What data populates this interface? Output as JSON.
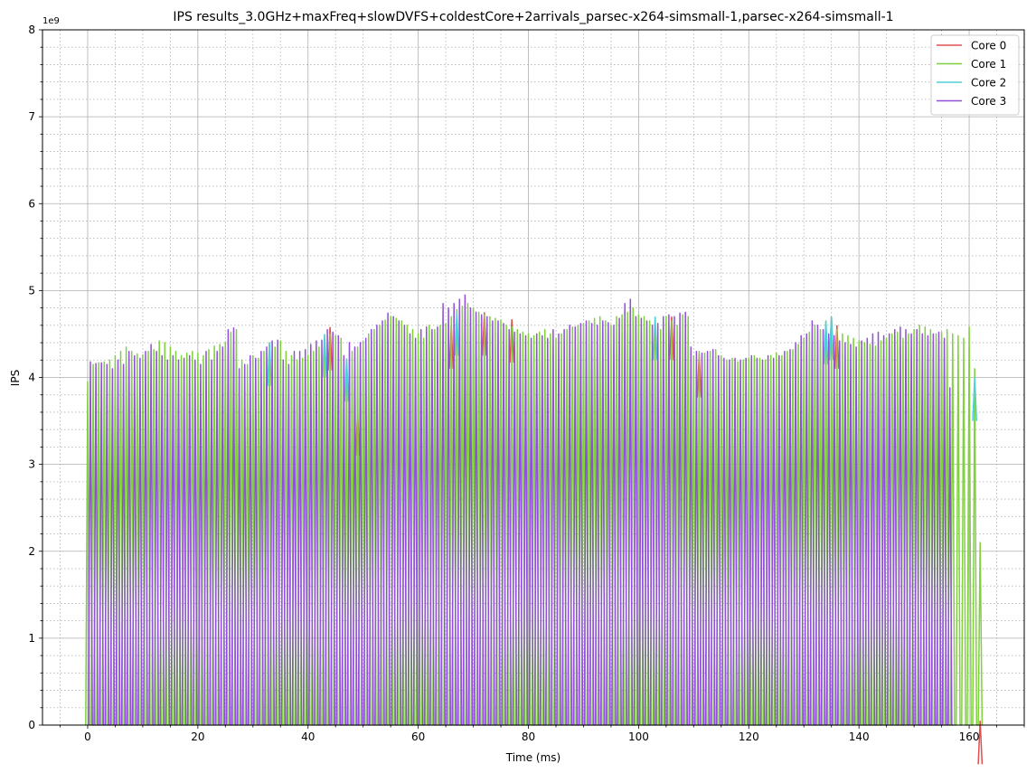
{
  "chart_data": {
    "type": "line",
    "title": "IPS results_3.0GHz+maxFreq+slowDVFS+coldestCore+2arrivals_parsec-x264-simsmall-1,parsec-x264-simsmall-1",
    "xlabel": "Time (ms)",
    "ylabel": "IPS",
    "y_offset_label": "1e9",
    "xlim": [
      -8.2,
      170
    ],
    "ylim": [
      0,
      8
    ],
    "y_scale": 1000000000,
    "x_ticks": [
      0,
      20,
      40,
      60,
      80,
      100,
      120,
      140,
      160
    ],
    "x_tick_labels": [
      "0",
      "20",
      "40",
      "60",
      "80",
      "100",
      "120",
      "140",
      "160"
    ],
    "y_ticks": [
      0,
      1,
      2,
      3,
      4,
      5,
      6,
      7,
      8
    ],
    "y_tick_labels": [
      "0",
      "1",
      "2",
      "3",
      "4",
      "5",
      "6",
      "7",
      "8"
    ],
    "x_minor_step": 5,
    "y_minor_step": 0.2,
    "grid": true,
    "legend_position": "top-right",
    "oscillation_period_ms": 1.0,
    "series": [
      {
        "name": "Core 0",
        "color": "#e05050",
        "peak_times_ms": [
          44,
          49,
          66,
          72,
          77,
          106,
          111,
          135,
          136,
          162
        ],
        "peak_values": [
          4.58,
          3.6,
          4.6,
          4.75,
          4.67,
          4.7,
          4.27,
          4.7,
          4.6,
          0.05
        ]
      },
      {
        "name": "Core 1",
        "color": "#80d040",
        "peak_times_ms": [
          0,
          1,
          2,
          3,
          4,
          5,
          6,
          7,
          8,
          9,
          10,
          11,
          12,
          13,
          14,
          15,
          16,
          17,
          18,
          19,
          20,
          21,
          22,
          23,
          24,
          25,
          26,
          27,
          28,
          29,
          30,
          31,
          32,
          33,
          34,
          35,
          36,
          37,
          38,
          39,
          40,
          41,
          42,
          43,
          44,
          45,
          46,
          47,
          48,
          49,
          50,
          51,
          52,
          53,
          54,
          55,
          56,
          57,
          58,
          59,
          60,
          61,
          62,
          63,
          64,
          65,
          66,
          67,
          68,
          69,
          70,
          71,
          72,
          73,
          74,
          75,
          76,
          77,
          78,
          79,
          80,
          81,
          82,
          83,
          84,
          85,
          86,
          87,
          88,
          89,
          90,
          91,
          92,
          93,
          94,
          95,
          96,
          97,
          98,
          99,
          100,
          101,
          102,
          103,
          104,
          105,
          106,
          107,
          108,
          109,
          110,
          111,
          112,
          113,
          114,
          115,
          116,
          117,
          118,
          119,
          120,
          121,
          122,
          123,
          124,
          125,
          126,
          127,
          128,
          129,
          130,
          131,
          132,
          133,
          134,
          135,
          136,
          137,
          138,
          139,
          140,
          141,
          142,
          143,
          144,
          145,
          146,
          147,
          148,
          149,
          150,
          151,
          152,
          153,
          154,
          155,
          156,
          157,
          158,
          159,
          160,
          161,
          162
        ],
        "peak_values": [
          3.95,
          4.15,
          4.17,
          4.18,
          4.2,
          4.25,
          4.3,
          4.35,
          4.3,
          4.27,
          4.26,
          4.3,
          4.32,
          4.42,
          4.4,
          4.35,
          4.3,
          4.25,
          4.28,
          4.3,
          4.28,
          4.25,
          4.32,
          4.36,
          4.38,
          4.4,
          4.52,
          4.55,
          4.2,
          4.15,
          4.25,
          4.22,
          4.3,
          4.4,
          4.35,
          4.42,
          4.3,
          4.25,
          4.2,
          4.22,
          4.25,
          4.3,
          4.35,
          4.4,
          4.5,
          4.48,
          4.45,
          4.2,
          4.3,
          4.35,
          4.42,
          4.5,
          4.55,
          4.6,
          4.66,
          4.7,
          4.68,
          4.65,
          4.6,
          4.55,
          4.5,
          4.45,
          4.6,
          4.55,
          4.6,
          4.62,
          4.7,
          4.78,
          4.82,
          4.85,
          4.8,
          4.75,
          4.72,
          4.7,
          4.68,
          4.66,
          4.6,
          4.58,
          4.55,
          4.52,
          4.5,
          4.48,
          4.52,
          4.55,
          4.5,
          4.45,
          4.5,
          4.55,
          4.58,
          4.6,
          4.62,
          4.65,
          4.68,
          4.7,
          4.65,
          4.6,
          4.7,
          4.72,
          4.75,
          4.8,
          4.72,
          4.7,
          4.65,
          4.6,
          4.55,
          4.7,
          4.65,
          4.6,
          4.72,
          4.7,
          4.25,
          4.3,
          4.28,
          4.3,
          4.32,
          4.25,
          4.2,
          4.22,
          4.18,
          4.2,
          4.22,
          4.25,
          4.22,
          4.2,
          4.25,
          4.28,
          4.25,
          4.3,
          4.32,
          4.38,
          4.45,
          4.52,
          4.6,
          4.55,
          4.65,
          4.6,
          4.55,
          4.5,
          4.48,
          4.45,
          4.42,
          4.4,
          4.38,
          4.36,
          4.42,
          4.45,
          4.5,
          4.52,
          4.45,
          4.5,
          4.55,
          4.6,
          4.58,
          4.55,
          4.5,
          4.52,
          4.55,
          4.5,
          4.48,
          4.45,
          4.58,
          4.1,
          2.1
        ]
      },
      {
        "name": "Core 2",
        "color": "#50d0d8",
        "peak_times_ms": [
          33,
          43,
          47,
          67,
          103,
          134,
          135,
          161
        ],
        "peak_values": [
          4.4,
          4.5,
          4.22,
          4.75,
          4.7,
          4.65,
          4.7,
          4.0
        ]
      },
      {
        "name": "Core 3",
        "color": "#9050d8",
        "peak_times_ms": [
          0.5,
          1.5,
          2.5,
          3.5,
          4.5,
          5.5,
          6.5,
          7.5,
          8.5,
          9.5,
          10.5,
          11.5,
          12.5,
          13.5,
          14.5,
          15.5,
          16.5,
          17.5,
          18.5,
          19.5,
          20.5,
          21.5,
          22.5,
          23.5,
          24.5,
          25.5,
          26.5,
          27.5,
          28.5,
          29.5,
          30.5,
          31.5,
          32.5,
          33.5,
          34.5,
          35.5,
          36.5,
          37.5,
          38.5,
          39.5,
          40.5,
          41.5,
          42.5,
          43.5,
          44.5,
          45.5,
          46.5,
          47.5,
          48.5,
          49.5,
          50.5,
          51.5,
          52.5,
          53.5,
          54.5,
          55.5,
          56.5,
          57.5,
          58.5,
          59.5,
          60.5,
          61.5,
          62.5,
          63.5,
          64.5,
          65.5,
          66.5,
          67.5,
          68.5,
          69.5,
          70.5,
          71.5,
          72.5,
          73.5,
          74.5,
          75.5,
          76.5,
          77.5,
          78.5,
          79.5,
          80.5,
          81.5,
          82.5,
          83.5,
          84.5,
          85.5,
          86.5,
          87.5,
          88.5,
          89.5,
          90.5,
          91.5,
          92.5,
          93.5,
          94.5,
          95.5,
          96.5,
          97.5,
          98.5,
          99.5,
          100.5,
          101.5,
          102.5,
          103.5,
          104.5,
          105.5,
          106.5,
          107.5,
          108.5,
          109.5,
          110.5,
          111.5,
          112.5,
          113.5,
          114.5,
          115.5,
          116.5,
          117.5,
          118.5,
          119.5,
          120.5,
          121.5,
          122.5,
          123.5,
          124.5,
          125.5,
          126.5,
          127.5,
          128.5,
          129.5,
          130.5,
          131.5,
          132.5,
          133.5,
          134.5,
          135.5,
          136.5,
          137.5,
          138.5,
          139.5,
          140.5,
          141.5,
          142.5,
          143.5,
          144.5,
          145.5,
          146.5,
          147.5,
          148.5,
          149.5,
          150.5,
          151.5,
          152.5,
          153.5,
          154.5,
          155.5,
          156.5,
          157.5,
          158.5,
          159.5,
          160.5,
          161.5
        ],
        "peak_values": [
          4.18,
          4.16,
          4.17,
          4.15,
          4.1,
          4.2,
          4.15,
          4.3,
          4.25,
          4.22,
          4.3,
          4.38,
          4.3,
          4.25,
          4.2,
          4.25,
          4.2,
          4.22,
          4.25,
          4.2,
          4.15,
          4.3,
          4.2,
          4.3,
          4.35,
          4.55,
          4.57,
          4.1,
          4.15,
          4.25,
          4.22,
          4.3,
          4.35,
          4.42,
          4.43,
          4.2,
          4.15,
          4.3,
          4.3,
          4.32,
          4.38,
          4.42,
          4.43,
          4.55,
          4.52,
          4.48,
          4.25,
          4.4,
          4.35,
          4.4,
          4.45,
          4.55,
          4.6,
          4.65,
          4.74,
          4.7,
          4.65,
          4.6,
          4.5,
          4.45,
          4.55,
          4.58,
          4.55,
          4.58,
          4.85,
          4.8,
          4.85,
          4.9,
          4.95,
          4.8,
          4.75,
          4.72,
          4.7,
          4.65,
          4.65,
          4.62,
          4.55,
          4.52,
          4.5,
          4.48,
          4.45,
          4.5,
          4.48,
          4.45,
          4.55,
          4.5,
          4.55,
          4.6,
          4.58,
          4.62,
          4.65,
          4.62,
          4.6,
          4.65,
          4.63,
          4.6,
          4.68,
          4.85,
          4.9,
          4.7,
          4.68,
          4.65,
          4.6,
          4.62,
          4.7,
          4.72,
          4.7,
          4.74,
          4.75,
          4.35,
          4.3,
          4.28,
          4.3,
          4.32,
          4.25,
          4.22,
          4.2,
          4.22,
          4.2,
          4.22,
          4.25,
          4.22,
          4.2,
          4.25,
          4.22,
          4.25,
          4.3,
          4.32,
          4.4,
          4.48,
          4.5,
          4.65,
          4.6,
          4.55,
          4.5,
          4.48,
          4.42,
          4.4,
          4.38,
          4.35,
          4.42,
          4.45,
          4.5,
          4.52,
          4.48,
          4.5,
          4.55,
          4.58,
          4.55,
          4.5,
          4.55,
          4.5,
          4.48,
          4.5,
          4.52,
          4.45,
          3.88
        ]
      }
    ]
  }
}
